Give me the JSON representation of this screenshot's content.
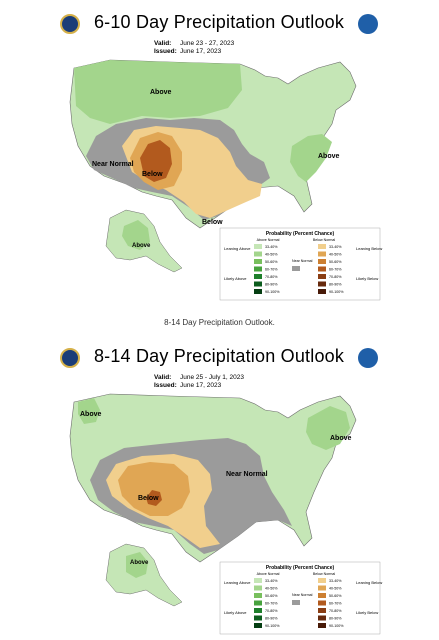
{
  "page": {
    "caption": "8-14 Day Precipitation Outlook."
  },
  "maps": [
    {
      "title": "6-10 Day Precipitation Outlook",
      "valid_label": "Valid:",
      "valid_value": "June 23 - 27, 2023",
      "issued_label": "Issued:",
      "issued_value": "June 17, 2023",
      "region_labels": {
        "above_north": "Above",
        "above_east": "Above",
        "near_normal": "Near Normal",
        "below_sw": "Below",
        "below_tx": "Below",
        "alaska_above": "Above"
      }
    },
    {
      "title": "8-14 Day Precipitation Outlook",
      "valid_label": "Valid:",
      "valid_value": "June 25 - July 1, 2023",
      "issued_label": "Issued:",
      "issued_value": "June 17, 2023",
      "region_labels": {
        "above_north": "Above",
        "above_east": "Above",
        "near_normal": "Near Normal",
        "below_sw": "Below",
        "alaska_above": "Above"
      }
    }
  ],
  "legend": {
    "title": "Probability (Percent Chance)",
    "above_header": "Above Normal",
    "below_header": "Below Normal",
    "near_normal": "Near Normal",
    "leaning_above": "Leaning Above",
    "likely_above": "Likely Above",
    "leaning_below": "Leaning Below",
    "likely_below": "Likely Below",
    "ranges": [
      "33-40%",
      "40-50%",
      "50-60%",
      "60-70%",
      "70-80%",
      "80-90%",
      "90-100%"
    ],
    "above_colors": [
      "#c5e6b6",
      "#a3d58c",
      "#78bf5d",
      "#47a23d",
      "#1e7f2b",
      "#0d5d1e",
      "#053e12"
    ],
    "below_colors": [
      "#f1cf8d",
      "#e0a654",
      "#cc7f31",
      "#b25a1e",
      "#8a3d13",
      "#672a0d",
      "#481a08"
    ],
    "near_normal_color": "#9b9b9b"
  }
}
